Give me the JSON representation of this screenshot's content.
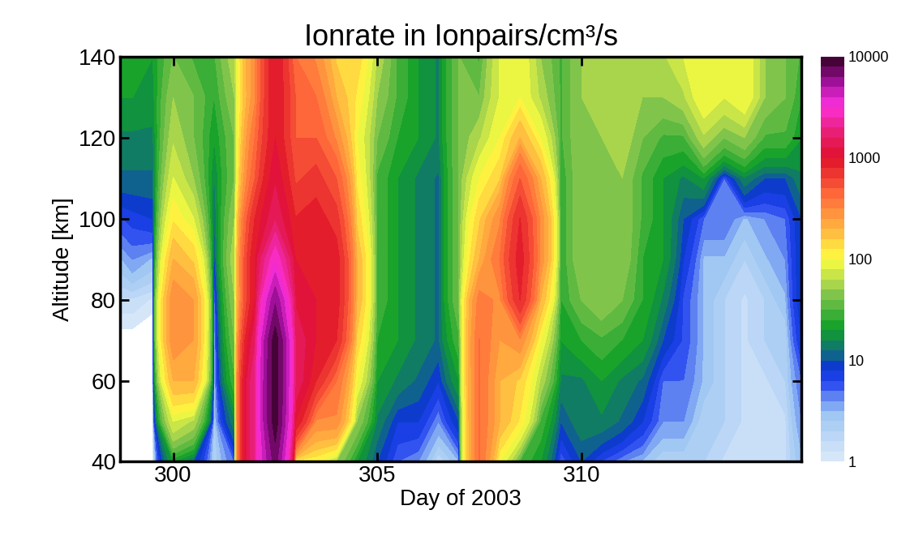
{
  "chart_data": {
    "type": "heatmap",
    "title": "Ionrate in Ionpairs/cm³/s",
    "x_label": "Day of 2003",
    "y_label": "Altitude [km]",
    "x": [
      298.7,
      299,
      299.5,
      300,
      300.5,
      301,
      301.5,
      302,
      302.5,
      303,
      303.5,
      304,
      304.5,
      305,
      305.5,
      306,
      306.5,
      307,
      307.5,
      308,
      308.5,
      309,
      309.5,
      310,
      310.5,
      311,
      311.5,
      312,
      312.5,
      313,
      313.5,
      314,
      314.5,
      315,
      315.4
    ],
    "y": [
      40,
      50,
      60,
      70,
      80,
      90,
      100,
      110,
      120,
      130,
      140
    ],
    "values": [
      [
        0.5,
        0.5,
        0.5,
        0.8,
        1.5,
        3,
        6,
        12,
        15,
        20,
        25
      ],
      [
        0.5,
        0.5,
        0.5,
        0.8,
        1.5,
        4,
        7,
        12,
        15,
        20,
        25
      ],
      [
        0.5,
        0.5,
        0.5,
        0.6,
        1.2,
        3,
        8,
        12,
        15,
        18,
        20
      ],
      [
        20,
        80,
        200,
        300,
        300,
        200,
        120,
        80,
        60,
        50,
        40
      ],
      [
        10,
        60,
        200,
        250,
        250,
        150,
        80,
        50,
        40,
        40,
        30
      ],
      [
        2,
        2,
        2,
        2,
        3,
        8,
        12,
        15,
        20,
        25,
        30
      ],
      [
        5,
        15,
        30,
        40,
        50,
        60,
        50,
        40,
        40,
        50,
        60
      ],
      [
        2000,
        2000,
        2000,
        1500,
        1000,
        1000,
        800,
        500,
        400,
        300,
        300
      ],
      [
        7000,
        9000,
        9000,
        9000,
        6000,
        3000,
        1500,
        1200,
        1000,
        1000,
        1000
      ],
      [
        100,
        1000,
        1500,
        1500,
        1200,
        1000,
        800,
        600,
        500,
        500,
        400
      ],
      [
        100,
        300,
        800,
        1000,
        1000,
        1000,
        900,
        700,
        500,
        400,
        300
      ],
      [
        50,
        300,
        400,
        800,
        900,
        900,
        700,
        500,
        300,
        200,
        150
      ],
      [
        20,
        50,
        100,
        150,
        200,
        200,
        150,
        120,
        100,
        120,
        150
      ],
      [
        10,
        15,
        20,
        25,
        30,
        30,
        30,
        30,
        40,
        50,
        60
      ],
      [
        5,
        8,
        15,
        20,
        20,
        20,
        20,
        20,
        25,
        30,
        30
      ],
      [
        4,
        8,
        12,
        15,
        15,
        15,
        15,
        15,
        20,
        20,
        20
      ],
      [
        1.5,
        4,
        8,
        12,
        12,
        12,
        12,
        12,
        15,
        15,
        15
      ],
      [
        3,
        10,
        20,
        30,
        40,
        40,
        40,
        40,
        40,
        40,
        40
      ],
      [
        400,
        400,
        400,
        400,
        350,
        200,
        150,
        100,
        60,
        40,
        30
      ],
      [
        100,
        200,
        200,
        250,
        300,
        400,
        300,
        150,
        100,
        80,
        80
      ],
      [
        30,
        120,
        150,
        300,
        800,
        900,
        800,
        500,
        200,
        100,
        100
      ],
      [
        20,
        30,
        60,
        100,
        200,
        300,
        300,
        200,
        100,
        60,
        50
      ],
      [
        5,
        10,
        15,
        20,
        25,
        25,
        25,
        25,
        30,
        30,
        30
      ],
      [
        10,
        15,
        15,
        25,
        40,
        50,
        50,
        50,
        50,
        50,
        50
      ],
      [
        6,
        15,
        20,
        30,
        50,
        50,
        50,
        50,
        50,
        60,
        60
      ],
      [
        4,
        12,
        15,
        25,
        40,
        50,
        50,
        50,
        60,
        60,
        60
      ],
      [
        3,
        8,
        12,
        20,
        25,
        25,
        30,
        30,
        40,
        50,
        60
      ],
      [
        2,
        4,
        5,
        10,
        15,
        20,
        20,
        20,
        30,
        50,
        60
      ],
      [
        2,
        4,
        5,
        6,
        6,
        8,
        10,
        15,
        30,
        60,
        80
      ],
      [
        2,
        2,
        3,
        3,
        3,
        3,
        5,
        20,
        60,
        100,
        100
      ],
      [
        1.5,
        2,
        2,
        2,
        2,
        3,
        5,
        5,
        40,
        80,
        100
      ],
      [
        1.5,
        1.5,
        1.5,
        1.5,
        1.5,
        2,
        3,
        15,
        50,
        100,
        100
      ],
      [
        1.5,
        1.5,
        1.5,
        2,
        2,
        3,
        4,
        10,
        30,
        50,
        50
      ],
      [
        1.5,
        1.5,
        2,
        2,
        3,
        4,
        5,
        10,
        30,
        40,
        40
      ],
      [
        3,
        4,
        5,
        8,
        10,
        10,
        10,
        15,
        20,
        25,
        30
      ]
    ],
    "xlim": [
      298.7,
      315.4
    ],
    "xticks": [
      300,
      305,
      310
    ],
    "ylim": [
      40,
      140
    ],
    "yticks": [
      40,
      60,
      80,
      100,
      120,
      140
    ],
    "colorbar": {
      "range": [
        1,
        10000
      ],
      "ticks": [
        1,
        10,
        100,
        1000,
        10000
      ]
    }
  }
}
